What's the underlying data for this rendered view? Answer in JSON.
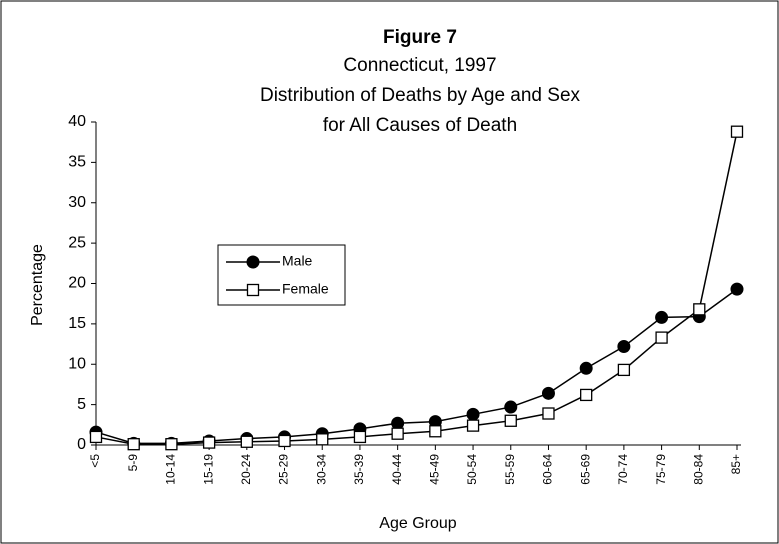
{
  "chart_data": {
    "type": "line",
    "title": "Figure 7",
    "subtitle": [
      "Connecticut, 1997",
      "Distribution of Deaths by Age and Sex",
      "for All Causes of Death"
    ],
    "x_label": "Age Group",
    "y_label": "Percentage",
    "categories": [
      "<5",
      "5-9",
      "10-14",
      "15-19",
      "20-24",
      "25-29",
      "30-34",
      "35-39",
      "40-44",
      "45-49",
      "50-54",
      "55-59",
      "60-64",
      "65-69",
      "70-74",
      "75-79",
      "80-84",
      "85+"
    ],
    "series": [
      {
        "name": "Male",
        "color": "#000000",
        "marker": "circle",
        "values": [
          1.6,
          0.2,
          0.2,
          0.5,
          0.8,
          1.0,
          1.4,
          2.0,
          2.7,
          2.9,
          3.8,
          4.7,
          6.4,
          9.5,
          12.2,
          15.8,
          15.9,
          19.3
        ]
      },
      {
        "name": "Female",
        "color": "#000000",
        "marker": "square",
        "values": [
          1.0,
          0.1,
          0.1,
          0.3,
          0.4,
          0.5,
          0.7,
          1.0,
          1.4,
          1.7,
          2.4,
          3.0,
          3.9,
          6.2,
          9.3,
          13.3,
          16.8,
          38.8
        ]
      }
    ],
    "ylim": [
      0,
      40
    ],
    "yticks": [
      0,
      5,
      10,
      15,
      20,
      25,
      30,
      35,
      40
    ],
    "grid": false
  }
}
